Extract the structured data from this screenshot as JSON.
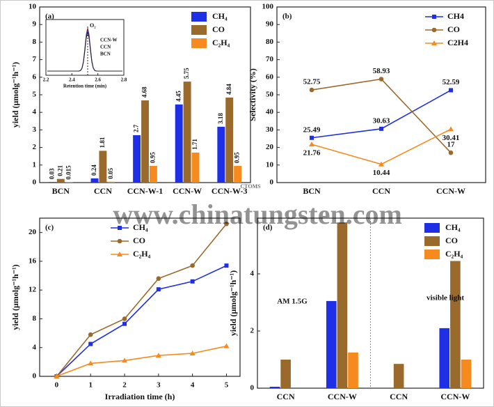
{
  "chart_data": [
    {
      "type": "bar",
      "panel_label": "(a)",
      "ylabel": "yield (μmolg⁻¹h⁻¹)",
      "categories": [
        "BCN",
        "CCN",
        "CCN-W-1",
        "CCN-W",
        "CCN-W-3"
      ],
      "series": [
        {
          "name": "CH₄",
          "color": "#1f2fe6",
          "values": [
            0.03,
            0.24,
            2.7,
            4.45,
            3.18
          ]
        },
        {
          "name": "CO",
          "color": "#9a6a2c",
          "values": [
            0.21,
            1.81,
            4.68,
            5.75,
            4.84
          ]
        },
        {
          "name": "C₂H₄",
          "color": "#f68a1e",
          "values": [
            0.015,
            0.05,
            0.95,
            1.71,
            0.95
          ]
        }
      ],
      "ylim": [
        0,
        10
      ],
      "yticks": [
        0,
        1,
        2,
        3,
        4,
        5,
        6,
        7,
        8,
        9,
        10
      ],
      "legend": "upper right",
      "value_labels_shown": true,
      "inset": {
        "xlabel": "Retention time (min)",
        "xlim": [
          2.2,
          2.8
        ],
        "xticks": [
          2.2,
          2.4,
          2.6,
          2.8
        ],
        "peak_label": "O₂",
        "legend": [
          "CCN-W",
          "CCN",
          "BCN"
        ]
      }
    },
    {
      "type": "line",
      "panel_label": "(b)",
      "ylabel": "Selectivity (%)",
      "categories": [
        "BCN",
        "CCN",
        "CCN-W"
      ],
      "series": [
        {
          "name": "CH4",
          "color": "#1f2fe6",
          "values": [
            25.49,
            30.63,
            52.59
          ]
        },
        {
          "name": "CO",
          "color": "#9a6a2c",
          "values": [
            52.75,
            58.93,
            17
          ]
        },
        {
          "name": "C2H4",
          "color": "#f68a1e",
          "values": [
            21.76,
            10.44,
            30.41
          ]
        }
      ],
      "ylim": [
        0,
        100
      ],
      "yticks": [
        0,
        10,
        20,
        30,
        40,
        50,
        60,
        70,
        80,
        90,
        100
      ],
      "legend": "upper right",
      "value_labels_shown": true
    },
    {
      "type": "line",
      "panel_label": "(c)",
      "ylabel": "yield (μmolg⁻¹h⁻¹)",
      "xlabel": "Irradiation time (h)",
      "x": [
        0,
        1,
        2,
        3,
        4,
        5
      ],
      "series": [
        {
          "name": "CH₄",
          "color": "#1f2fe6",
          "values": [
            0,
            4.5,
            7.3,
            12.1,
            13.2,
            15.4
          ]
        },
        {
          "name": "CO",
          "color": "#9a6a2c",
          "values": [
            0,
            5.8,
            8,
            13.6,
            15.4,
            21.2
          ]
        },
        {
          "name": "C₂H₄",
          "color": "#f68a1e",
          "values": [
            0,
            1.8,
            2.2,
            2.9,
            3.2,
            4.2
          ]
        }
      ],
      "xlim": [
        -0.5,
        5.4
      ],
      "xticks": [
        0,
        1,
        2,
        3,
        4,
        5
      ],
      "ylim": [
        0,
        22
      ],
      "yticks": [
        0,
        4,
        8,
        12,
        16,
        20
      ],
      "legend": "upper center"
    },
    {
      "type": "bar",
      "panel_label": "(d)",
      "ylabel": "yield (μmolg⁻¹h⁻¹)",
      "categories": [
        "CCN",
        "CCN-W",
        "CCN",
        "CCN-W"
      ],
      "series": [
        {
          "name": "CH₄",
          "color": "#1f2fe6",
          "values": [
            0.05,
            3.05,
            0,
            2.1
          ]
        },
        {
          "name": "CO",
          "color": "#9a6a2c",
          "values": [
            1,
            5.8,
            0.85,
            4.45
          ]
        },
        {
          "name": "C₂H₄",
          "color": "#f68a1e",
          "values": [
            0,
            1.25,
            0,
            1
          ]
        }
      ],
      "ylim": [
        0,
        5.95
      ],
      "yticks": [
        0,
        2,
        4
      ],
      "legend": "upper right",
      "annotations": [
        "AM 1.5G",
        "visible light"
      ]
    }
  ],
  "watermark": {
    "url": "www.chinatungsten.com",
    "logo": "CTOMS"
  }
}
